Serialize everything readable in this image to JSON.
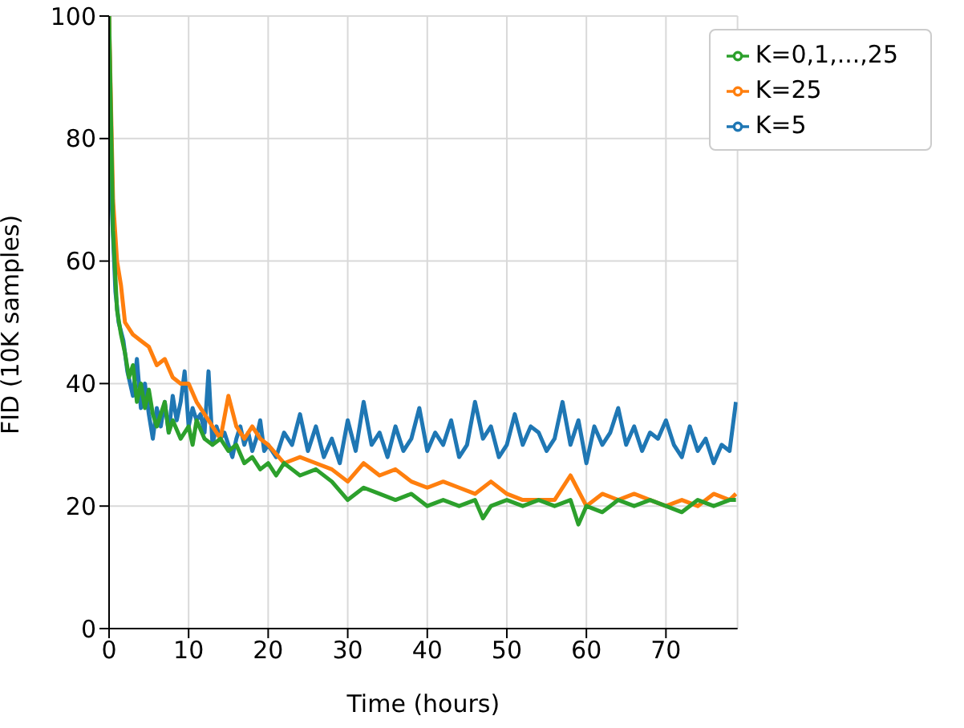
{
  "chart_data": {
    "type": "line",
    "xlabel": "Time (hours)",
    "ylabel": "FID (10K samples)",
    "xlim": [
      0,
      79
    ],
    "xticks": [
      0,
      10,
      20,
      30,
      40,
      50,
      60,
      70
    ],
    "ylim": [
      0,
      100
    ],
    "yticks": [
      0,
      20,
      40,
      60,
      80,
      100
    ],
    "grid": true,
    "legend": "top right",
    "series": [
      {
        "name": "K=5",
        "color": "#1f77b4",
        "x": [
          0,
          0.3,
          0.8,
          1.2,
          1.8,
          2.3,
          3,
          3.5,
          4,
          4.5,
          5,
          5.5,
          6,
          6.5,
          7,
          7.5,
          8,
          8.5,
          9,
          9.5,
          10,
          10.5,
          11,
          11.5,
          12,
          12.5,
          13,
          13.5,
          14,
          14.5,
          15,
          15.5,
          16,
          16.5,
          17,
          17.5,
          18,
          18.5,
          19,
          19.5,
          20,
          21,
          22,
          23,
          24,
          25,
          26,
          27,
          28,
          29,
          30,
          31,
          32,
          33,
          34,
          35,
          36,
          37,
          38,
          39,
          40,
          41,
          42,
          43,
          44,
          45,
          46,
          47,
          48,
          49,
          50,
          51,
          52,
          53,
          54,
          55,
          56,
          57,
          58,
          59,
          60,
          61,
          62,
          63,
          64,
          65,
          66,
          67,
          68,
          69,
          70,
          71,
          72,
          73,
          74,
          75,
          76,
          77,
          78,
          78.8
        ],
        "values": [
          100,
          70,
          55,
          50,
          47,
          42,
          38,
          44,
          36,
          40,
          35,
          31,
          36,
          33,
          37,
          32,
          38,
          34,
          37,
          42,
          33,
          36,
          34,
          35,
          32,
          42,
          30,
          33,
          31,
          32,
          30,
          28,
          31,
          33,
          30,
          32,
          29,
          31,
          34,
          29,
          30,
          28,
          32,
          30,
          35,
          29,
          33,
          28,
          31,
          27,
          34,
          29,
          37,
          30,
          32,
          28,
          33,
          29,
          31,
          36,
          29,
          32,
          30,
          34,
          28,
          30,
          37,
          31,
          33,
          28,
          30,
          35,
          30,
          33,
          32,
          29,
          31,
          37,
          30,
          34,
          27,
          33,
          30,
          32,
          36,
          30,
          33,
          29,
          32,
          31,
          34,
          30,
          28,
          33,
          29,
          31,
          27,
          30,
          29,
          37
        ]
      },
      {
        "name": "K=25",
        "color": "#ff7f0e",
        "x": [
          0,
          0.5,
          1,
          1.5,
          2,
          3,
          4,
          5,
          6,
          7,
          8,
          9,
          10,
          11,
          12,
          13,
          14,
          15,
          16,
          17,
          18,
          19,
          20,
          22,
          24,
          26,
          28,
          30,
          32,
          34,
          36,
          38,
          40,
          42,
          44,
          46,
          48,
          50,
          52,
          54,
          56,
          58,
          60,
          62,
          64,
          66,
          68,
          70,
          72,
          74,
          76,
          78,
          78.8
        ],
        "values": [
          100,
          70,
          60,
          56,
          50,
          48,
          47,
          46,
          43,
          44,
          41,
          40,
          40,
          37,
          35,
          33,
          31,
          38,
          33,
          31,
          33,
          31,
          30,
          27,
          28,
          27,
          26,
          24,
          27,
          25,
          26,
          24,
          23,
          24,
          23,
          22,
          24,
          22,
          21,
          21,
          21,
          25,
          20,
          22,
          21,
          22,
          21,
          20,
          21,
          20,
          22,
          21,
          22
        ]
      },
      {
        "name": "K=0,1,...,25",
        "color": "#2ca02c",
        "x": [
          0,
          0.5,
          1,
          1.5,
          2,
          2.5,
          3,
          3.5,
          4,
          4.5,
          5,
          5.5,
          6,
          7,
          7.5,
          8,
          9,
          10,
          10.5,
          11,
          12,
          13,
          14,
          15,
          16,
          17,
          18,
          19,
          20,
          21,
          22,
          23,
          24,
          26,
          28,
          30,
          32,
          34,
          36,
          38,
          40,
          42,
          44,
          46,
          47,
          48,
          50,
          52,
          54,
          56,
          58,
          59,
          60,
          62,
          64,
          66,
          68,
          70,
          72,
          74,
          76,
          78,
          78.8
        ],
        "values": [
          100,
          65,
          52,
          48,
          45,
          41,
          43,
          37,
          40,
          36,
          39,
          35,
          33,
          37,
          32,
          34,
          31,
          33,
          30,
          34,
          31,
          30,
          31,
          29,
          30,
          27,
          28,
          26,
          27,
          25,
          27,
          26,
          25,
          26,
          24,
          21,
          23,
          22,
          21,
          22,
          20,
          21,
          20,
          21,
          18,
          20,
          21,
          20,
          21,
          20,
          21,
          17,
          20,
          19,
          21,
          20,
          21,
          20,
          19,
          21,
          20,
          21,
          21
        ]
      }
    ]
  }
}
